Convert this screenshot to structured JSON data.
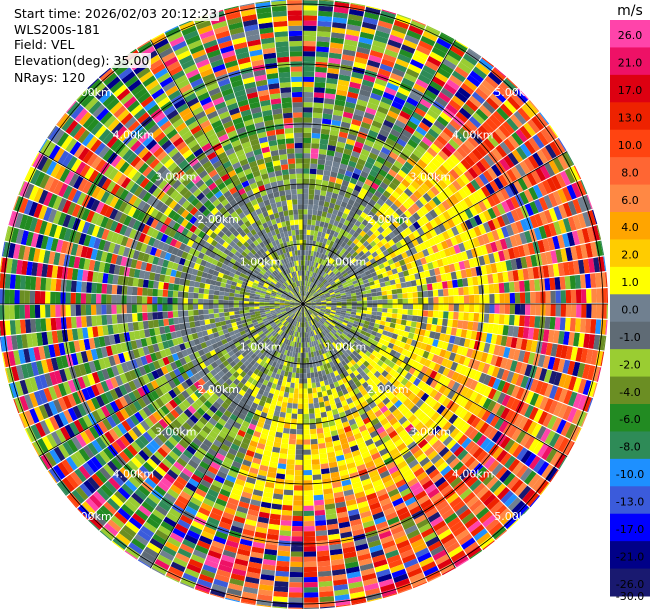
{
  "header": {
    "start_time": "Start time: 2026/02/03 20:12:23",
    "instrument": "WLS200s-181",
    "field": "Field: VEL",
    "elevation": "Elevation(deg): 35.00",
    "nrays": "NRays: 120"
  },
  "colorbar": {
    "unit": "m/s",
    "ticks": [
      "26.0",
      "21.0",
      "17.0",
      "13.0",
      "10.0",
      "8.0",
      "6.0",
      "4.0",
      "2.0",
      "1.0",
      "0.0",
      "-1.0",
      "-2.0",
      "-4.0",
      "-6.0",
      "-8.0",
      "-10.0",
      "-13.0",
      "-17.0",
      "-21.0",
      "-26.0",
      "-30.0"
    ],
    "colors": [
      "#ff44aa",
      "#ee1166",
      "#dd0011",
      "#ee2200",
      "#ff4411",
      "#ff6633",
      "#ff8844",
      "#ffa500",
      "#ffcc00",
      "#ffff00",
      "#708090",
      "#5f6b75",
      "#9acd32",
      "#6b8e23",
      "#228b22",
      "#2e8b57",
      "#1e90ff",
      "#3b5bdb",
      "#0000ff",
      "#000088",
      "#191970"
    ]
  },
  "chart_data": {
    "type": "heatmap",
    "projection": "polar PPI",
    "range_rings_km": [
      "1.00km",
      "2.00km",
      "3.00km",
      "4.00km",
      "5.00km"
    ],
    "n_rays": 120,
    "value_range": [
      -30,
      26
    ],
    "units": "m/s",
    "pattern": {
      "near_field_max_km": 2.1,
      "near_field_values": [
        0.0,
        -1.0,
        -2.0
      ],
      "positive_sector_azimuth_deg": [
        40,
        200
      ],
      "positive_sector_values": [
        2.0,
        4.0,
        6.0,
        8.0
      ],
      "far_field_values": "noisy mix of all classes"
    }
  }
}
